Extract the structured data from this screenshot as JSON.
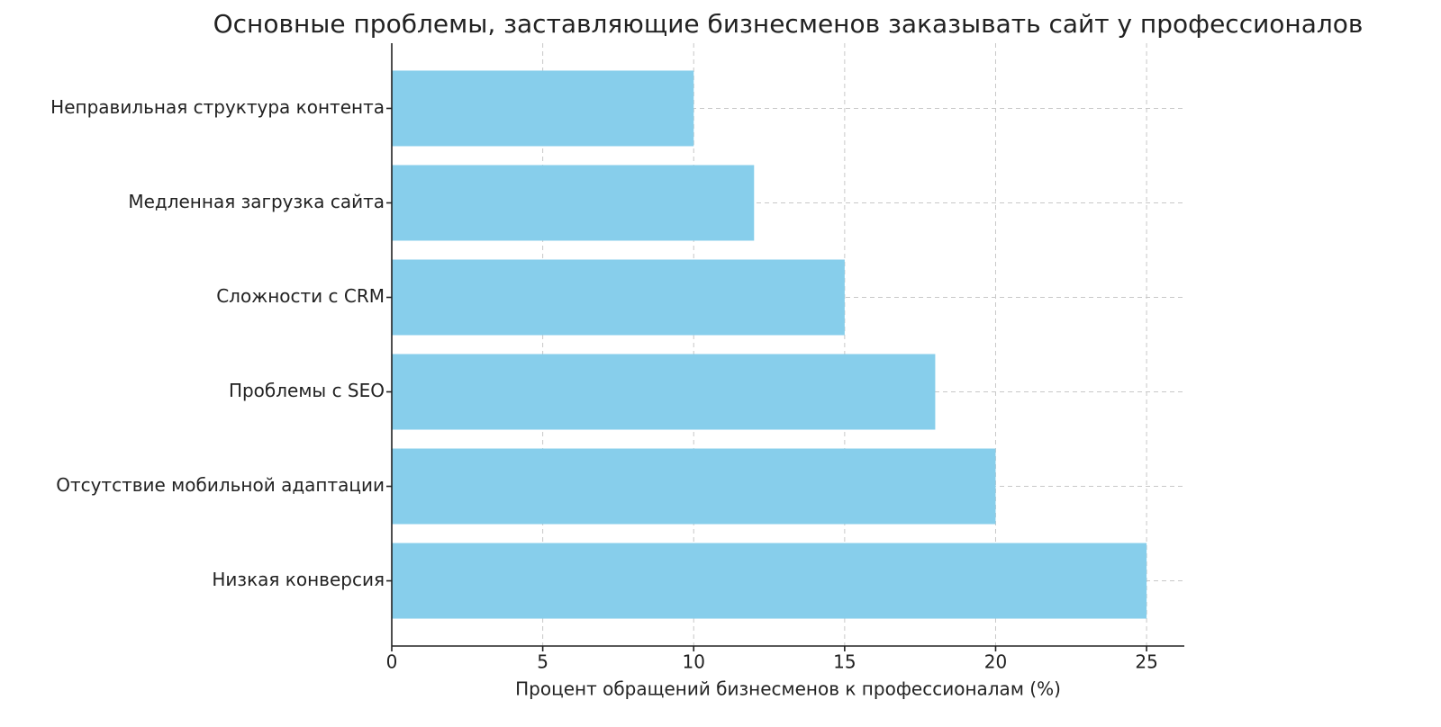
{
  "chart_data": {
    "type": "barh",
    "title": "Основные проблемы, заставляющие бизнесменов заказывать сайт у профессионалов",
    "xlabel": "Процент обращений бизнесменов к профессионалам (%)",
    "categories": [
      "Неправильная структура контента",
      "Медленная загрузка сайта",
      "Сложности с CRM",
      "Проблемы с SEO",
      "Отсутствие мобильной адаптации",
      "Низкая конверсия"
    ],
    "values": [
      10,
      12,
      15,
      18,
      20,
      25
    ],
    "color": "#87ceeb",
    "xlim": [
      0,
      26.25
    ],
    "xticks": [
      0,
      5,
      10,
      15,
      20,
      25
    ],
    "grid": true
  }
}
